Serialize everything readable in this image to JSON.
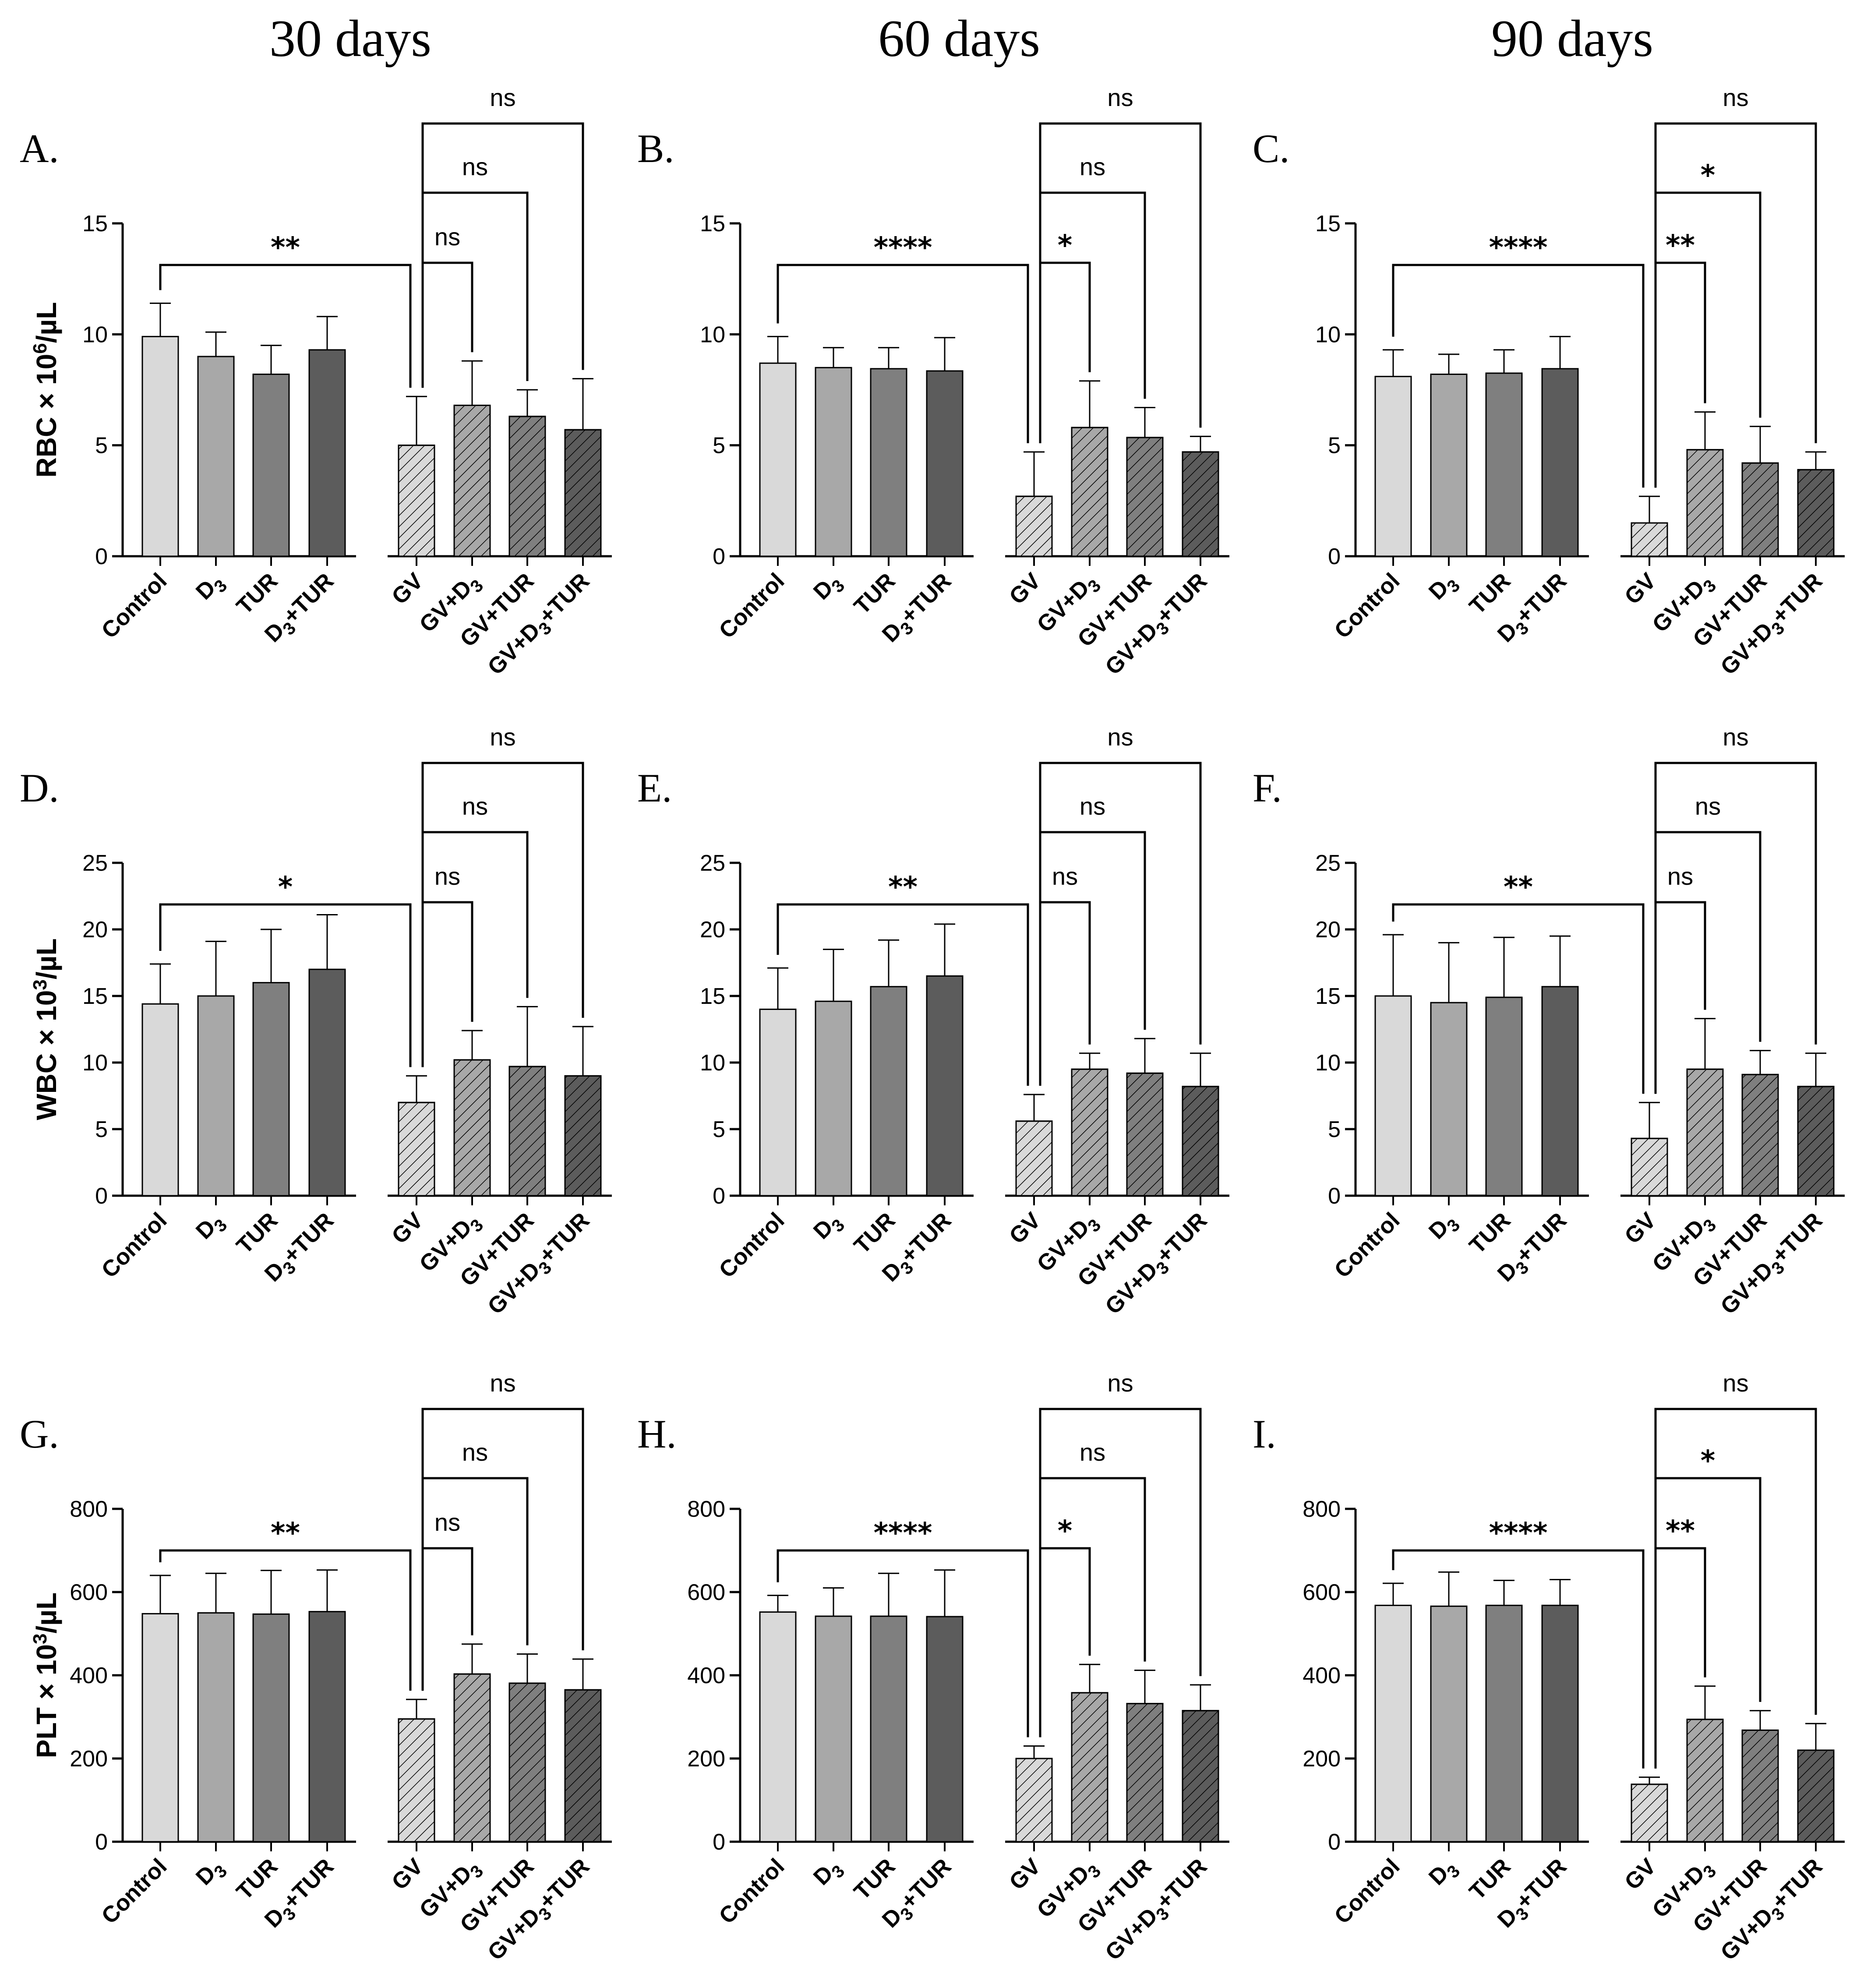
{
  "column_titles": [
    "30 days",
    "60 days",
    "90 days"
  ],
  "row_ylabels": [
    {
      "pre": "RBC × 10",
      "sup": "6",
      "post": "/µL"
    },
    {
      "pre": "WBC × 10",
      "sup": "3",
      "post": "/µL"
    },
    {
      "pre": "PLT × 10",
      "sup": "3",
      "post": "/µL"
    }
  ],
  "categories": [
    {
      "name": "Control",
      "base": "Control",
      "sub": "",
      "rest": ""
    },
    {
      "name": "D3",
      "base": "D",
      "sub": "3",
      "rest": ""
    },
    {
      "name": "TUR",
      "base": "TUR",
      "sub": "",
      "rest": ""
    },
    {
      "name": "D3+TUR",
      "base": "D",
      "sub": "3",
      "rest": "+TUR"
    },
    {
      "name": "GV",
      "base": "GV",
      "sub": "",
      "rest": ""
    },
    {
      "name": "GV+D3",
      "base": "GV+D",
      "sub": "3",
      "rest": ""
    },
    {
      "name": "GV+TUR",
      "base": "GV+TUR",
      "sub": "",
      "rest": ""
    },
    {
      "name": "GV+D3+TUR",
      "base": "GV+D",
      "sub": "3",
      "rest": "+TUR"
    }
  ],
  "colors": {
    "bars": [
      "#d9d9d9",
      "#a8a8a8",
      "#7f7f7f",
      "#5c5c5c",
      "#d9d9d9",
      "#a8a8a8",
      "#7f7f7f",
      "#5c5c5c"
    ],
    "hatched": [
      false,
      false,
      false,
      false,
      true,
      true,
      true,
      true
    ],
    "stroke": "#000000"
  },
  "chart_data": [
    {
      "panel": "A.",
      "type": "bar",
      "row": 0,
      "col": 0,
      "ylim": [
        0,
        15
      ],
      "yticks": [
        0,
        5,
        10,
        15
      ],
      "ytick_labels": [
        "0",
        "5",
        "10",
        "15"
      ],
      "values": [
        9.9,
        9.0,
        8.2,
        9.3,
        5.0,
        6.8,
        6.3,
        5.7
      ],
      "errors": [
        1.5,
        1.1,
        1.3,
        1.5,
        2.2,
        2.0,
        1.2,
        2.3
      ],
      "significance": [
        {
          "label": "**",
          "comparison": "Control vs GV"
        },
        {
          "label": "ns",
          "comparison": "GV vs GV+D3"
        },
        {
          "label": "ns",
          "comparison": "GV vs GV+TUR"
        },
        {
          "label": "ns",
          "comparison": "GV vs GV+D3+TUR"
        }
      ]
    },
    {
      "panel": "B.",
      "type": "bar",
      "row": 0,
      "col": 1,
      "ylim": [
        0,
        15
      ],
      "yticks": [
        0,
        5,
        10,
        15
      ],
      "ytick_labels": [
        "0",
        "5",
        "10",
        "15"
      ],
      "values": [
        8.7,
        8.5,
        8.45,
        8.35,
        2.7,
        5.8,
        5.35,
        4.7
      ],
      "errors": [
        1.2,
        0.9,
        0.95,
        1.5,
        2.0,
        2.1,
        1.35,
        0.7
      ],
      "significance": [
        {
          "label": "****",
          "comparison": "Control vs GV"
        },
        {
          "label": "*",
          "comparison": "GV vs GV+D3"
        },
        {
          "label": "ns",
          "comparison": "GV vs GV+TUR"
        },
        {
          "label": "ns",
          "comparison": "GV vs GV+D3+TUR"
        }
      ]
    },
    {
      "panel": "C.",
      "type": "bar",
      "row": 0,
      "col": 2,
      "ylim": [
        0,
        15
      ],
      "yticks": [
        0,
        5,
        10,
        15
      ],
      "ytick_labels": [
        "0",
        "5",
        "10",
        "15"
      ],
      "values": [
        8.1,
        8.2,
        8.25,
        8.45,
        1.5,
        4.8,
        4.2,
        3.9
      ],
      "errors": [
        1.2,
        0.9,
        1.05,
        1.45,
        1.2,
        1.7,
        1.65,
        0.8
      ],
      "significance": [
        {
          "label": "****",
          "comparison": "Control vs GV"
        },
        {
          "label": "**",
          "comparison": "GV vs GV+D3"
        },
        {
          "label": "*",
          "comparison": "GV vs GV+TUR"
        },
        {
          "label": "ns",
          "comparison": "GV vs GV+D3+TUR"
        }
      ]
    },
    {
      "panel": "D.",
      "type": "bar",
      "row": 1,
      "col": 0,
      "ylim": [
        0,
        25
      ],
      "yticks": [
        0,
        5,
        10,
        15,
        20,
        25
      ],
      "ytick_labels": [
        "0",
        "5",
        "10",
        "15",
        "20",
        "25"
      ],
      "values": [
        14.4,
        15.0,
        16.0,
        17.0,
        7.0,
        10.2,
        9.7,
        9.0
      ],
      "errors": [
        3.0,
        4.1,
        4.0,
        4.1,
        2.0,
        2.2,
        4.5,
        3.7
      ],
      "significance": [
        {
          "label": "*",
          "comparison": "Control vs GV"
        },
        {
          "label": "ns",
          "comparison": "GV vs GV+D3"
        },
        {
          "label": "ns",
          "comparison": "GV vs GV+TUR"
        },
        {
          "label": "ns",
          "comparison": "GV vs GV+D3+TUR"
        }
      ]
    },
    {
      "panel": "E.",
      "type": "bar",
      "row": 1,
      "col": 1,
      "ylim": [
        0,
        25
      ],
      "yticks": [
        0,
        5,
        10,
        15,
        20,
        25
      ],
      "ytick_labels": [
        "0",
        "5",
        "10",
        "15",
        "20",
        "25"
      ],
      "values": [
        14.0,
        14.6,
        15.7,
        16.5,
        5.6,
        9.5,
        9.2,
        8.2
      ],
      "errors": [
        3.1,
        3.9,
        3.5,
        3.9,
        2.0,
        1.2,
        2.6,
        2.5
      ],
      "significance": [
        {
          "label": "**",
          "comparison": "Control vs GV"
        },
        {
          "label": "ns",
          "comparison": "GV vs GV+D3"
        },
        {
          "label": "ns",
          "comparison": "GV vs GV+TUR"
        },
        {
          "label": "ns",
          "comparison": "GV vs GV+D3+TUR"
        }
      ]
    },
    {
      "panel": "F.",
      "type": "bar",
      "row": 1,
      "col": 2,
      "ylim": [
        0,
        25
      ],
      "yticks": [
        0,
        5,
        10,
        15,
        20,
        25
      ],
      "ytick_labels": [
        "0",
        "5",
        "10",
        "15",
        "20",
        "25"
      ],
      "values": [
        15.0,
        14.5,
        14.9,
        15.7,
        4.3,
        9.5,
        9.1,
        8.2
      ],
      "errors": [
        4.6,
        4.5,
        4.5,
        3.8,
        2.7,
        3.8,
        1.8,
        2.5
      ],
      "significance": [
        {
          "label": "**",
          "comparison": "Control vs GV"
        },
        {
          "label": "ns",
          "comparison": "GV vs GV+D3"
        },
        {
          "label": "ns",
          "comparison": "GV vs GV+TUR"
        },
        {
          "label": "ns",
          "comparison": "GV vs GV+D3+TUR"
        }
      ]
    },
    {
      "panel": "G.",
      "type": "bar",
      "row": 2,
      "col": 0,
      "ylim": [
        0,
        800
      ],
      "yticks": [
        0,
        200,
        400,
        600,
        800
      ],
      "ytick_labels": [
        "0",
        "200",
        "400",
        "600",
        "800"
      ],
      "values": [
        548,
        550,
        547,
        553,
        295,
        403,
        381,
        365
      ],
      "errors": [
        92,
        95,
        105,
        100,
        47,
        72,
        70,
        74
      ],
      "significance": [
        {
          "label": "**",
          "comparison": "Control vs GV"
        },
        {
          "label": "ns",
          "comparison": "GV vs GV+D3"
        },
        {
          "label": "ns",
          "comparison": "GV vs GV+TUR"
        },
        {
          "label": "ns",
          "comparison": "GV vs GV+D3+TUR"
        }
      ]
    },
    {
      "panel": "H.",
      "type": "bar",
      "row": 2,
      "col": 1,
      "ylim": [
        0,
        800
      ],
      "yticks": [
        0,
        200,
        400,
        600,
        800
      ],
      "ytick_labels": [
        "0",
        "200",
        "400",
        "600",
        "800"
      ],
      "values": [
        552,
        542,
        542,
        541,
        200,
        358,
        332,
        315
      ],
      "errors": [
        40,
        68,
        103,
        112,
        30,
        68,
        80,
        62
      ],
      "significance": [
        {
          "label": "****",
          "comparison": "Control vs GV"
        },
        {
          "label": "*",
          "comparison": "GV vs GV+D3"
        },
        {
          "label": "ns",
          "comparison": "GV vs GV+TUR"
        },
        {
          "label": "ns",
          "comparison": "GV vs GV+D3+TUR"
        }
      ]
    },
    {
      "panel": "I.",
      "type": "bar",
      "row": 2,
      "col": 2,
      "ylim": [
        0,
        800
      ],
      "yticks": [
        0,
        200,
        400,
        600,
        800
      ],
      "ytick_labels": [
        "0",
        "200",
        "400",
        "600",
        "800"
      ],
      "values": [
        568,
        566,
        568,
        568,
        138,
        294,
        268,
        220
      ],
      "errors": [
        53,
        82,
        60,
        62,
        17,
        80,
        47,
        64
      ],
      "significance": [
        {
          "label": "****",
          "comparison": "Control vs GV"
        },
        {
          "label": "**",
          "comparison": "GV vs GV+D3"
        },
        {
          "label": "*",
          "comparison": "GV vs GV+TUR"
        },
        {
          "label": "ns",
          "comparison": "GV vs GV+D3+TUR"
        }
      ]
    }
  ]
}
